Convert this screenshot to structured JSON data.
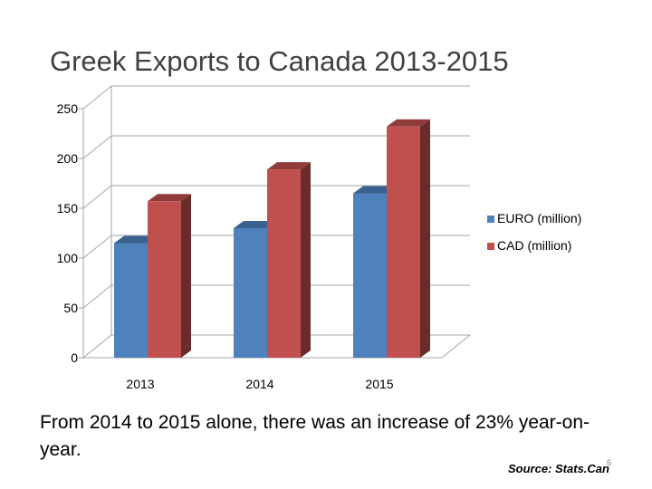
{
  "slide": {
    "title": "Greek Exports to Canada 2013-2015",
    "caption": "From 2014 to 2015 alone, there was an increase of 23% year-on-year.",
    "source": "Source: Stats.Can",
    "page_number": "6"
  },
  "colors": {
    "euro": "#4f81bd",
    "cad": "#c0504d",
    "grid": "#a6a6a6"
  },
  "chart_data": {
    "type": "bar",
    "style": "3d-clustered",
    "title": "Greek Exports to Canada 2013-2015",
    "categories": [
      "2013",
      "2014",
      "2015"
    ],
    "series": [
      {
        "name": "EURO (million)",
        "values": [
          115,
          130,
          165
        ]
      },
      {
        "name": "CAD (million)",
        "values": [
          157,
          189,
          232
        ]
      }
    ],
    "ylim": [
      0,
      250
    ],
    "yticks": [
      0,
      50,
      100,
      150,
      200,
      250
    ],
    "grid": true,
    "legend": "right",
    "xlabel": "",
    "ylabel": ""
  }
}
